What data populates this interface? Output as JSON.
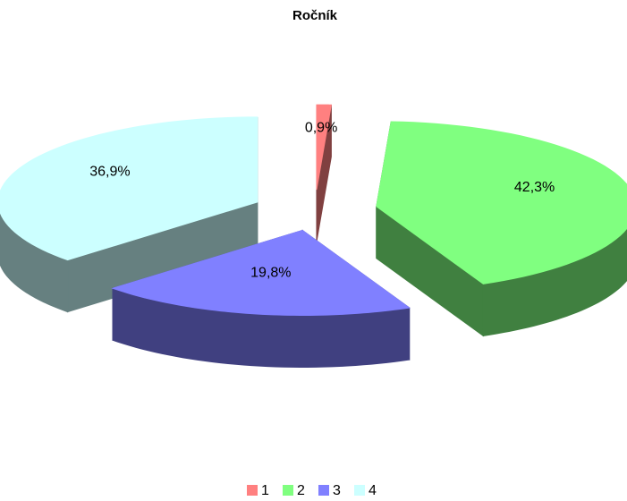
{
  "chart_data": {
    "type": "pie",
    "title": "Ročník",
    "categories": [
      "1",
      "2",
      "3",
      "4"
    ],
    "values": [
      0.9,
      42.3,
      19.8,
      36.9
    ],
    "value_labels": [
      "0,9%",
      "42,3%",
      "19,8%",
      "36,9%"
    ],
    "colors": [
      "#ff8080",
      "#80ff80",
      "#8080ff",
      "#ccffff"
    ],
    "legend": "bottom"
  }
}
